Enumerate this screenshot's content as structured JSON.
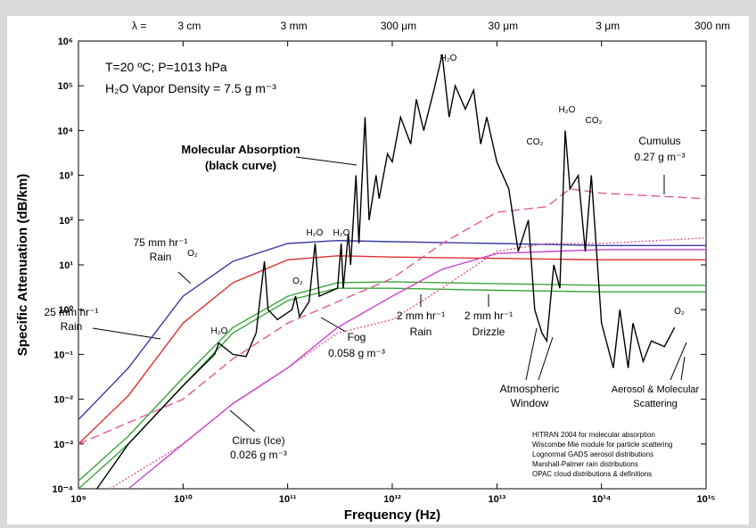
{
  "chart_data": {
    "type": "line",
    "log_x": true,
    "log_y": true,
    "xlabel": "Frequency (Hz)",
    "ylabel": "Specific Attenuation (dB/km)",
    "xlim": [
      1000000000.0,
      1000000000000000.0
    ],
    "ylim": [
      0.0001,
      1000000.0
    ],
    "xticks": [
      {
        "value": 1000000000.0,
        "label": "10⁹"
      },
      {
        "value": 10000000000.0,
        "label": "10¹⁰"
      },
      {
        "value": 100000000000.0,
        "label": "10¹¹"
      },
      {
        "value": 1000000000000.0,
        "label": "10¹²"
      },
      {
        "value": 10000000000000.0,
        "label": "10¹³"
      },
      {
        "value": 100000000000000.0,
        "label": "10¹⁴"
      },
      {
        "value": 1000000000000000.0,
        "label": "10¹⁵"
      }
    ],
    "yticks": [
      {
        "value": 0.0001,
        "label": "10⁻⁴"
      },
      {
        "value": 0.001,
        "label": "10⁻³"
      },
      {
        "value": 0.01,
        "label": "10⁻²"
      },
      {
        "value": 0.1,
        "label": "10⁻¹"
      },
      {
        "value": 1,
        "label": "10⁰"
      },
      {
        "value": 10,
        "label": "10¹"
      },
      {
        "value": 100,
        "label": "10²"
      },
      {
        "value": 1000,
        "label": "10³"
      },
      {
        "value": 10000,
        "label": "10⁴"
      },
      {
        "value": 100000,
        "label": "10⁵"
      },
      {
        "value": 1000000,
        "label": "10⁶"
      }
    ],
    "top_axis_title": "λ =",
    "top_ticks": [
      {
        "value": 10000000000.0,
        "label": "3 cm"
      },
      {
        "value": 100000000000.0,
        "label": "3 mm"
      },
      {
        "value": 1000000000000.0,
        "label": "300 μm"
      },
      {
        "value": 10000000000000.0,
        "label": "30 μm"
      },
      {
        "value": 100000000000000.0,
        "label": "3 μm"
      },
      {
        "value": 1000000000000000.0,
        "label": "300 nm"
      }
    ],
    "series": [
      {
        "color": "#3a3aa8",
        "style": "solid",
        "x": [
          1000000000.0,
          3000000000.0,
          10000000000.0,
          30000000000.0,
          100000000000.0,
          300000000000.0,
          1000000000000.0,
          10000000000000.0,
          100000000000000.0,
          1000000000000000.0
        ],
        "values": [
          0.0035,
          0.05,
          2,
          12,
          30,
          35,
          33,
          30,
          27,
          27
        ]
      },
      {
        "color": "#e03030",
        "style": "solid",
        "x": [
          1000000000.0,
          3000000000.0,
          10000000000.0,
          30000000000.0,
          100000000000.0,
          300000000000.0,
          1000000000000.0,
          10000000000000.0,
          100000000000000.0,
          1000000000000000.0
        ],
        "values": [
          0.001,
          0.012,
          0.5,
          4,
          13,
          16,
          15,
          14,
          13,
          13
        ]
      },
      {
        "color": "#3aa53a",
        "style": "solid",
        "x": [
          1000000000.0,
          3000000000.0,
          10000000000.0,
          30000000000.0,
          100000000000.0,
          300000000000.0,
          1000000000000.0,
          10000000000000.0,
          100000000000000.0,
          1000000000000000.0
        ],
        "values": [
          0.00015,
          0.0015,
          0.03,
          0.4,
          2,
          4,
          4.2,
          3.8,
          3.5,
          3.5
        ]
      },
      {
        "color": "#3aa53a",
        "style": "solid",
        "x": [
          1000000000.0,
          3000000000.0,
          10000000000.0,
          30000000000.0,
          100000000000.0,
          300000000000.0,
          1000000000000.0,
          10000000000000.0,
          100000000000000.0,
          1000000000000000.0
        ],
        "values": [
          0.0001,
          0.001,
          0.02,
          0.3,
          1.6,
          3,
          3,
          2.7,
          2.5,
          2.5
        ]
      },
      {
        "color": "#e05a9a",
        "style": "dotted",
        "x": [
          2000000000.0,
          10000000000.0,
          30000000000.0,
          100000000000.0,
          300000000000.0,
          1000000000000.0,
          3000000000000.0,
          10000000000000.0,
          30000000000000.0,
          100000000000000.0,
          1000000000000000.0
        ],
        "values": [
          0.0001,
          0.001,
          0.008,
          0.05,
          0.3,
          0.6,
          3,
          20,
          30,
          30,
          40
        ]
      },
      {
        "color": "#e05a9a",
        "style": "dashed",
        "x": [
          1000000000.0,
          10000000000.0,
          30000000000.0,
          100000000000.0,
          300000000000.0,
          1000000000000.0,
          3000000000000.0,
          10000000000000.0,
          30000000000000.0,
          50000000000000.0,
          100000000000000.0,
          1000000000000000.0
        ],
        "values": [
          0.001,
          0.01,
          0.08,
          0.5,
          1.5,
          5,
          30,
          150,
          200,
          500,
          400,
          300
        ]
      },
      {
        "color": "#cc44cc",
        "style": "solid",
        "x": [
          3000000000.0,
          10000000000.0,
          30000000000.0,
          100000000000.0,
          300000000000.0,
          1000000000000.0,
          3000000000000.0,
          10000000000000.0,
          100000000000000.0,
          1000000000000000.0
        ],
        "values": [
          0.0001,
          0.001,
          0.008,
          0.05,
          0.4,
          2,
          8,
          18,
          22,
          22
        ]
      },
      {
        "color": "#000000",
        "style": "solid",
        "x": [
          1500000000.0,
          3000000000.0,
          10000000000.0,
          20000000000.0,
          22000000000.0,
          30000000000.0,
          40000000000.0,
          50000000000.0,
          60000000000.0,
          65000000000.0,
          80000000000.0,
          110000000000.0,
          119000000000.0,
          130000000000.0,
          160000000000.0,
          183000000000.0,
          200000000000.0,
          300000000000.0,
          325000000000.0,
          340000000000.0,
          380000000000.0,
          400000000000.0,
          450000000000.0,
          480000000000.0,
          550000000000.0,
          600000000000.0,
          700000000000.0,
          750000000000.0,
          900000000000.0,
          1000000000000.0,
          1200000000000.0,
          1500000000000.0,
          1700000000000.0,
          2000000000000.0,
          2500000000000.0,
          3000000000000.0,
          3500000000000.0,
          4000000000000.0,
          5000000000000.0,
          6000000000000.0,
          7000000000000.0,
          8000000000000.0,
          10000000000000.0,
          13000000000000.0,
          16000000000000.0,
          20000000000000.0,
          23000000000000.0,
          27000000000000.0,
          30000000000000.0,
          35000000000000.0,
          40000000000000.0,
          45000000000000.0,
          50000000000000.0,
          60000000000000.0,
          70000000000000.0,
          80000000000000.0,
          100000000000000.0,
          130000000000000.0,
          150000000000000.0,
          180000000000000.0,
          200000000000000.0,
          250000000000000.0,
          300000000000000.0,
          400000000000000.0,
          500000000000000.0
        ],
        "values": [
          0.0001,
          0.001,
          0.02,
          0.1,
          0.18,
          0.1,
          0.09,
          0.3,
          12,
          1,
          0.6,
          1,
          2,
          0.7,
          1.5,
          30,
          2,
          3,
          30,
          3,
          50,
          10,
          1000,
          30,
          20000,
          100,
          1000,
          300,
          3000,
          2000,
          20000,
          5000,
          50000,
          10000,
          80000,
          500000,
          20000,
          100000,
          30000,
          80000,
          5000,
          20000,
          2000,
          500,
          20,
          100,
          1,
          0.3,
          0.2,
          10,
          3,
          10000,
          500,
          1000,
          20,
          1000,
          0.5,
          0.05,
          1,
          0.05,
          0.5,
          0.07,
          0.2,
          0.15,
          0.4
        ]
      }
    ],
    "annotations": [
      "T=20 ºC; P=1013 hPa",
      "H₂O Vapor Density = 7.5 g m⁻³",
      "Molecular Absorption",
      "(black curve)",
      "75 mm hr⁻¹",
      "Rain",
      "25 mm hr⁻¹",
      "Rain",
      "O₂",
      "O₂",
      "H₂O",
      "H₂O",
      "H₂O",
      "H₂O",
      "CO₂",
      "H₂O",
      "CO₂",
      "Cumulus",
      "0.27 g m⁻³",
      "Fog",
      "0.058 g m⁻³",
      "2 mm hr⁻¹",
      "Rain",
      "2 mm hr⁻¹",
      "Drizzle",
      "Atmospheric",
      "Window",
      "Aerosol & Molecular",
      "Scattering",
      "Cirrus (Ice)",
      "0.026 g m⁻³",
      "O₂"
    ],
    "notes": [
      "HITRAN 2004 for molecular absorption",
      "Wiscombe Mie module for particle scattering",
      "Lognormal GADS aerosol distributions",
      "Marshall-Palmer rain distributions",
      "OPAC cloud distributions & definitions"
    ]
  }
}
